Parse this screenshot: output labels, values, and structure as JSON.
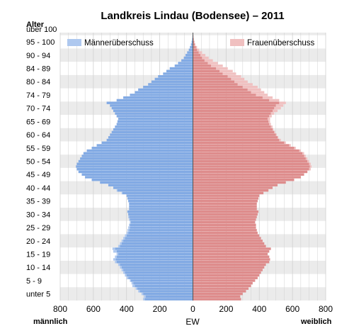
{
  "chart_data": {
    "type": "population-pyramid",
    "title": "Landkreis Lindau (Bodensee) – 2011",
    "ylabel": "Alter",
    "xlabel": "EW",
    "left_label": "männlich",
    "right_label": "weiblich",
    "x_ticks": [
      "800",
      "600",
      "400",
      "200",
      "0",
      "200",
      "400",
      "600",
      "800"
    ],
    "x_range": [
      -800,
      800
    ],
    "age_labels": [
      "unter 5",
      "5 - 9",
      "10 - 14",
      "15 - 19",
      "20 - 24",
      "25 - 29",
      "30 - 34",
      "35 - 39",
      "40 - 44",
      "45 - 49",
      "50 - 54",
      "55 - 59",
      "60 - 64",
      "65 - 69",
      "70 - 74",
      "74 - 79",
      "80 - 84",
      "84 - 89",
      "90 - 94",
      "95 - 100",
      "über 100"
    ],
    "age_range": [
      0,
      100
    ],
    "legend": [
      {
        "label": "Männerüberschuss",
        "color": "#aec8ef",
        "position": "top-left"
      },
      {
        "label": "Frauenüberschuss",
        "color": "#f0c0c0",
        "position": "top-right"
      }
    ],
    "colors": {
      "male": "#82aae4",
      "female": "#de8c8c",
      "male_surplus": "#aec8ef",
      "female_surplus": "#f0c0c0",
      "band": "#ebebeb",
      "grid": "#d0d0d0"
    },
    "grid": true,
    "bar_unit_years": 1,
    "series": [
      {
        "name": "männlich",
        "values": [
          300,
          295,
          310,
          330,
          345,
          365,
          370,
          380,
          400,
          410,
          420,
          430,
          440,
          450,
          470,
          480,
          470,
          460,
          480,
          485,
          450,
          440,
          430,
          420,
          410,
          400,
          395,
          390,
          385,
          380,
          385,
          390,
          390,
          395,
          385,
          385,
          385,
          390,
          395,
          400,
          430,
          460,
          480,
          510,
          560,
          610,
          650,
          670,
          690,
          700,
          705,
          700,
          690,
          680,
          670,
          660,
          640,
          610,
          580,
          550,
          520,
          510,
          500,
          490,
          480,
          470,
          460,
          455,
          450,
          460,
          470,
          480,
          490,
          500,
          520,
          460,
          420,
          380,
          350,
          330,
          300,
          270,
          250,
          230,
          210,
          180,
          160,
          140,
          110,
          90,
          70,
          55,
          45,
          35,
          25,
          18,
          12,
          8,
          5,
          3,
          2
        ]
      },
      {
        "name": "weiblich",
        "values": [
          290,
          285,
          300,
          320,
          335,
          350,
          360,
          375,
          390,
          400,
          410,
          420,
          430,
          440,
          460,
          465,
          460,
          450,
          460,
          470,
          440,
          430,
          420,
          410,
          400,
          390,
          385,
          380,
          380,
          375,
          380,
          385,
          390,
          395,
          385,
          385,
          385,
          390,
          395,
          400,
          425,
          455,
          480,
          510,
          560,
          610,
          650,
          670,
          690,
          710,
          715,
          710,
          700,
          690,
          680,
          670,
          650,
          620,
          590,
          560,
          530,
          515,
          505,
          495,
          485,
          480,
          470,
          465,
          465,
          475,
          490,
          510,
          530,
          545,
          560,
          520,
          480,
          450,
          430,
          410,
          390,
          360,
          330,
          310,
          290,
          260,
          240,
          210,
          180,
          150,
          120,
          95,
          75,
          55,
          38,
          25,
          15,
          10,
          6,
          4,
          2
        ]
      }
    ]
  }
}
